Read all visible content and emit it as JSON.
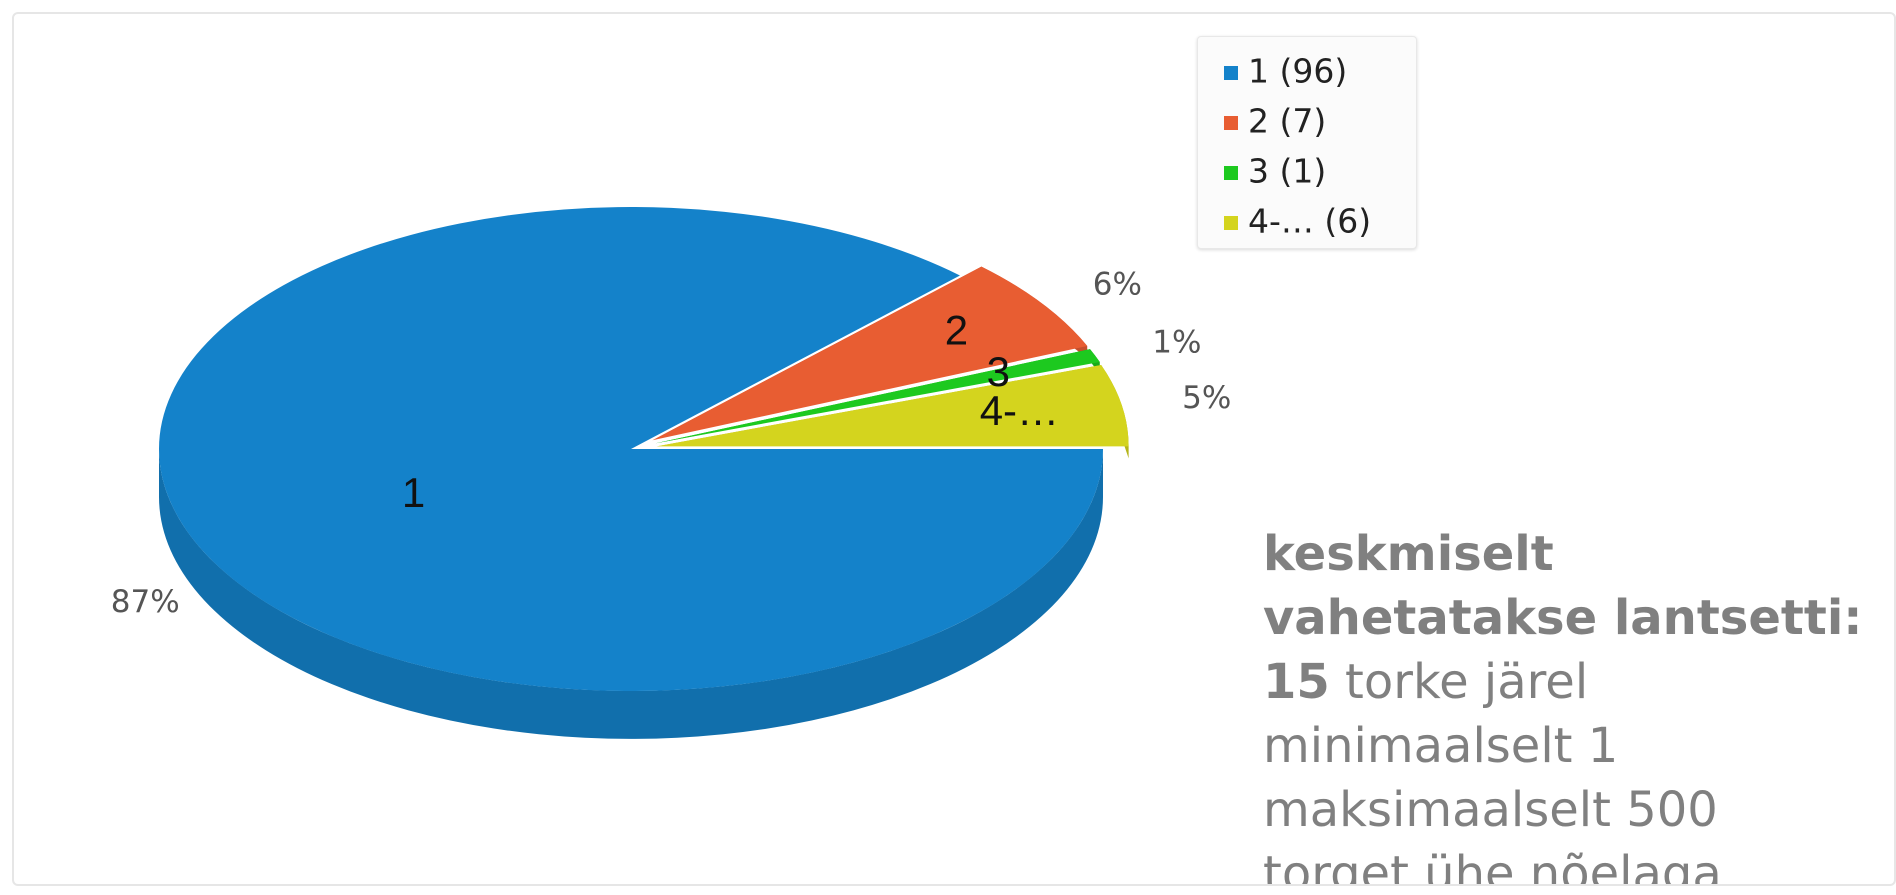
{
  "chart_data": {
    "type": "pie",
    "categories": [
      "1",
      "2",
      "3",
      "4-…"
    ],
    "values": [
      96,
      7,
      1,
      6
    ],
    "value_labels": [
      "87%",
      "6%",
      "1%",
      "5%"
    ],
    "legend_labels": [
      "1 (96)",
      "2 (7)",
      "3 (1)",
      "4-… (6)"
    ],
    "colors": [
      "#1482ca",
      "#e85d32",
      "#1dc91f",
      "#d4d41e"
    ],
    "three_d": true
  },
  "note": {
    "heading": "keskmiselt vahetatakse lantsetti:",
    "line1_bold": "15",
    "line1_rest": " torke järel",
    "line2": "minimaalselt 1",
    "line3": "maksimaalselt 500",
    "line4": "torget ühe nõelaga"
  }
}
